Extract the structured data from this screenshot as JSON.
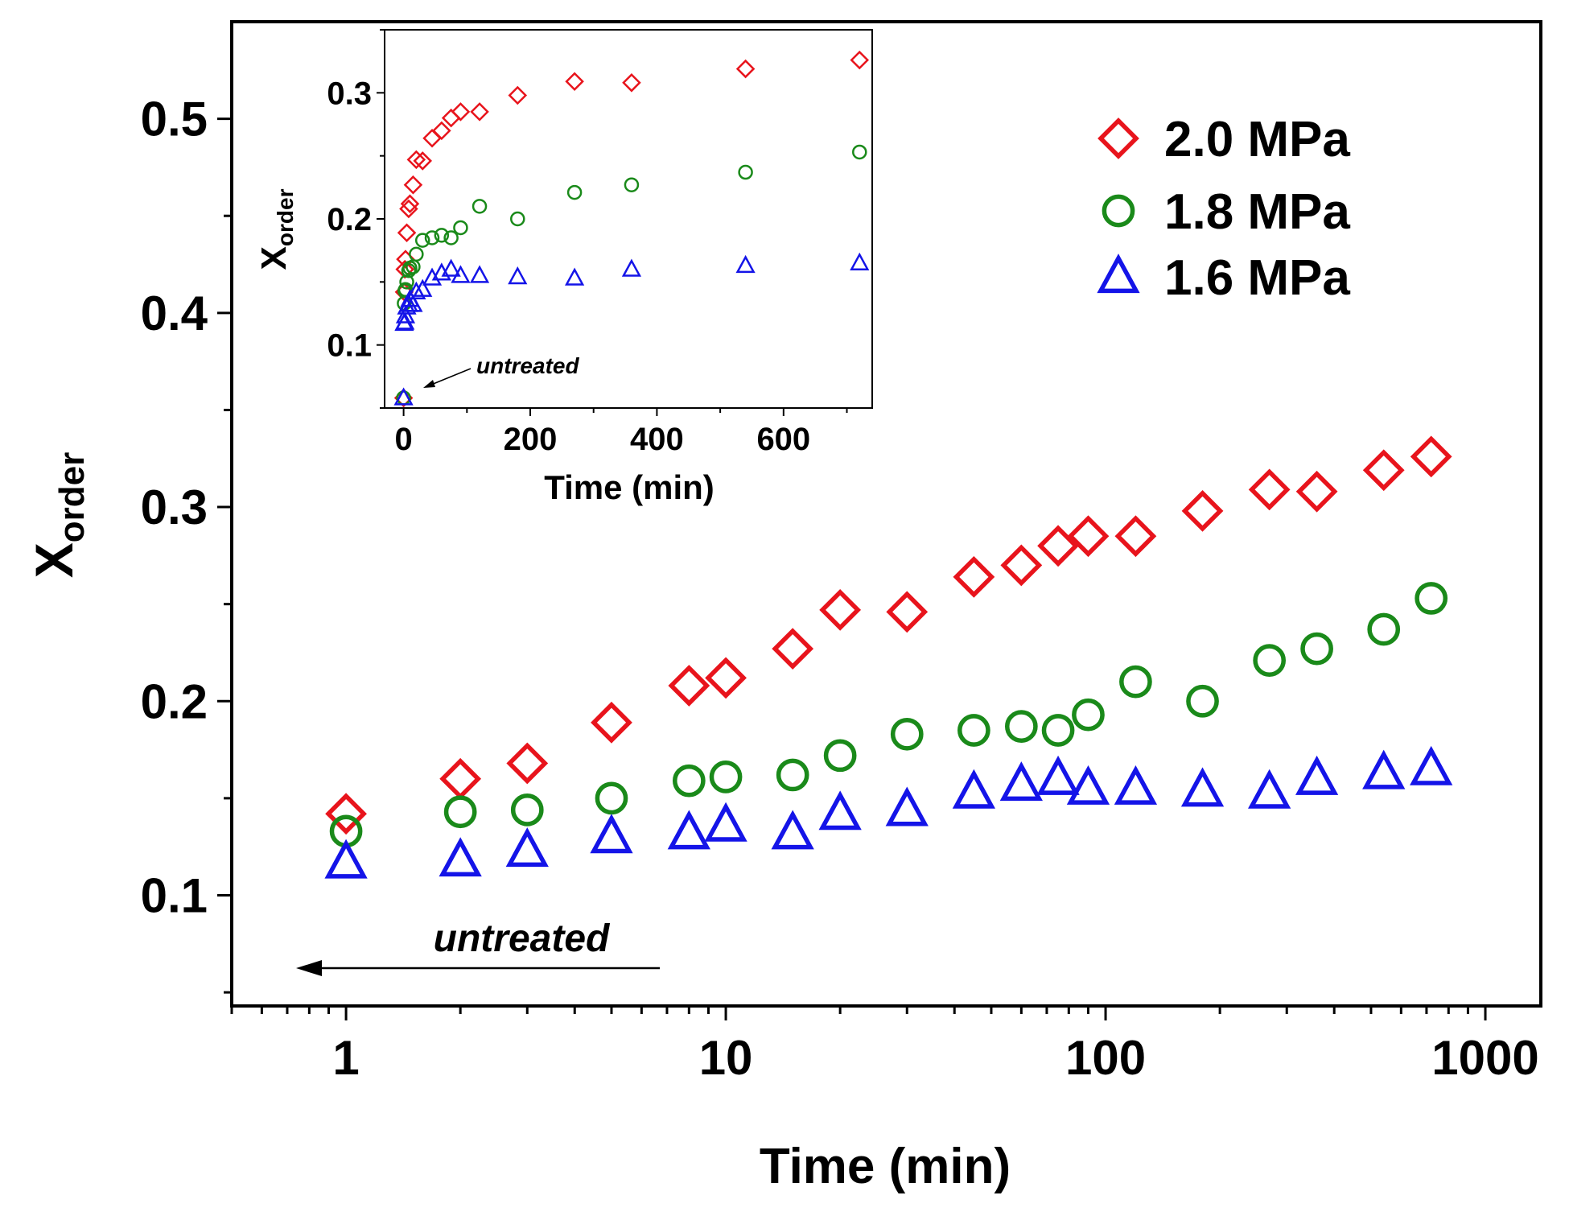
{
  "chart_data": [
    {
      "id": "main",
      "type": "scatter",
      "xscale": "log",
      "xlabel": "Time (min)",
      "ylabel": "X",
      "ylabel_sub": "order",
      "xlim": [
        0.5,
        1400
      ],
      "ylim": [
        0.043,
        0.55
      ],
      "xticks": [
        1,
        10,
        100,
        1000
      ],
      "xtick_labels": [
        "1",
        "10",
        "100",
        "1000"
      ],
      "yticks": [
        0.1,
        0.2,
        0.3,
        0.4,
        0.5
      ],
      "ytick_labels": [
        "0.1",
        "0.2",
        "0.3",
        "0.4",
        "0.5"
      ],
      "annotation": "untreated",
      "legend_position": "top-right",
      "series": [
        {
          "name": "2.0 MPa",
          "color": "#e8141c",
          "marker": "diamond",
          "x": [
            1,
            2,
            3,
            5,
            8,
            10,
            15,
            20,
            30,
            45,
            60,
            75,
            90,
            120,
            180,
            270,
            360,
            540,
            720
          ],
          "y": [
            0.142,
            0.16,
            0.168,
            0.189,
            0.208,
            0.212,
            0.227,
            0.247,
            0.246,
            0.264,
            0.27,
            0.28,
            0.285,
            0.285,
            0.298,
            0.309,
            0.308,
            0.319,
            0.326
          ]
        },
        {
          "name": "1.8 MPa",
          "color": "#1a8a1a",
          "marker": "circle",
          "x": [
            1,
            2,
            3,
            5,
            8,
            10,
            15,
            20,
            30,
            45,
            60,
            75,
            90,
            120,
            180,
            270,
            360,
            540,
            720
          ],
          "y": [
            0.133,
            0.143,
            0.144,
            0.15,
            0.159,
            0.161,
            0.162,
            0.172,
            0.183,
            0.185,
            0.187,
            0.185,
            0.193,
            0.21,
            0.2,
            0.221,
            0.227,
            0.237,
            0.253
          ]
        },
        {
          "name": "1.6 MPa",
          "color": "#1414e8",
          "marker": "triangle",
          "x": [
            1,
            2,
            3,
            5,
            8,
            10,
            15,
            20,
            30,
            45,
            60,
            75,
            90,
            120,
            180,
            270,
            360,
            540,
            720
          ],
          "y": [
            0.117,
            0.118,
            0.123,
            0.13,
            0.132,
            0.136,
            0.132,
            0.142,
            0.144,
            0.153,
            0.157,
            0.16,
            0.155,
            0.155,
            0.154,
            0.153,
            0.16,
            0.163,
            0.165
          ]
        }
      ]
    },
    {
      "id": "inset",
      "type": "scatter",
      "xscale": "linear",
      "xlabel": "Time (min)",
      "ylabel": "X",
      "ylabel_sub": "order",
      "xlim": [
        -30,
        740
      ],
      "ylim": [
        0.05,
        0.35
      ],
      "xticks": [
        0,
        200,
        400,
        600
      ],
      "xtick_labels": [
        "0",
        "200",
        "400",
        "600"
      ],
      "yticks": [
        0.1,
        0.2,
        0.3
      ],
      "ytick_labels": [
        "0.1",
        "0.2",
        "0.3"
      ],
      "annotation": "untreated",
      "series": [
        {
          "name": "2.0 MPa",
          "color": "#e8141c",
          "marker": "diamond",
          "x": [
            0,
            1,
            2,
            3,
            5,
            8,
            10,
            15,
            20,
            30,
            45,
            60,
            75,
            90,
            120,
            180,
            270,
            360,
            540,
            720
          ],
          "y": [
            0.058,
            0.142,
            0.16,
            0.168,
            0.189,
            0.208,
            0.212,
            0.227,
            0.247,
            0.246,
            0.264,
            0.27,
            0.28,
            0.285,
            0.285,
            0.298,
            0.309,
            0.308,
            0.319,
            0.326
          ]
        },
        {
          "name": "1.8 MPa",
          "color": "#1a8a1a",
          "marker": "circle",
          "x": [
            0,
            1,
            2,
            3,
            5,
            8,
            10,
            15,
            20,
            30,
            45,
            60,
            75,
            90,
            120,
            180,
            270,
            360,
            540,
            720
          ],
          "y": [
            0.058,
            0.133,
            0.143,
            0.144,
            0.15,
            0.159,
            0.161,
            0.162,
            0.172,
            0.183,
            0.185,
            0.187,
            0.185,
            0.193,
            0.21,
            0.2,
            0.221,
            0.227,
            0.237,
            0.253
          ]
        },
        {
          "name": "1.6 MPa",
          "color": "#1414e8",
          "marker": "triangle",
          "x": [
            0,
            1,
            2,
            3,
            5,
            8,
            10,
            15,
            20,
            30,
            45,
            60,
            75,
            90,
            120,
            180,
            270,
            360,
            540,
            720
          ],
          "y": [
            0.058,
            0.117,
            0.118,
            0.123,
            0.13,
            0.132,
            0.136,
            0.132,
            0.142,
            0.144,
            0.153,
            0.157,
            0.16,
            0.155,
            0.155,
            0.154,
            0.153,
            0.16,
            0.163,
            0.165
          ]
        }
      ]
    }
  ]
}
